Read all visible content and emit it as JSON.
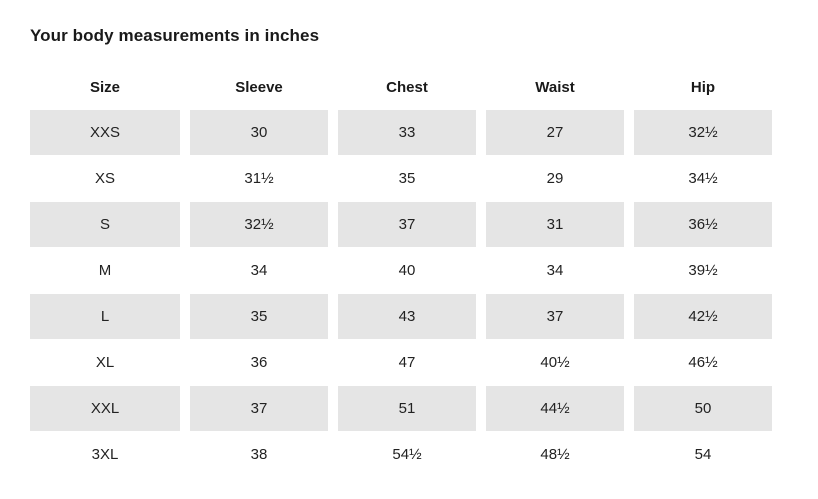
{
  "page": {
    "title": "Your body measurements in inches"
  },
  "table": {
    "columns": [
      "Size",
      "Sleeve",
      "Chest",
      "Waist",
      "Hip"
    ],
    "rows": [
      {
        "size": "XXS",
        "sleeve": "30",
        "chest": "33",
        "waist": "27",
        "hip": "32½"
      },
      {
        "size": "XS",
        "sleeve": "31½",
        "chest": "35",
        "waist": "29",
        "hip": "34½"
      },
      {
        "size": "S",
        "sleeve": "32½",
        "chest": "37",
        "waist": "31",
        "hip": "36½"
      },
      {
        "size": "M",
        "sleeve": "34",
        "chest": "40",
        "waist": "34",
        "hip": "39½"
      },
      {
        "size": "L",
        "sleeve": "35",
        "chest": "43",
        "waist": "37",
        "hip": "42½"
      },
      {
        "size": "XL",
        "sleeve": "36",
        "chest": "47",
        "waist": "40½",
        "hip": "46½"
      },
      {
        "size": "XXL",
        "sleeve": "37",
        "chest": "51",
        "waist": "44½",
        "hip": "50"
      },
      {
        "size": "3XL",
        "sleeve": "38",
        "chest": "54½",
        "waist": "48½",
        "hip": "54"
      }
    ],
    "colors": {
      "row_stripe": "#e5e5e5",
      "text": "#222222",
      "title_text": "#1a1a1a",
      "background": "#ffffff"
    },
    "units": "inches"
  }
}
